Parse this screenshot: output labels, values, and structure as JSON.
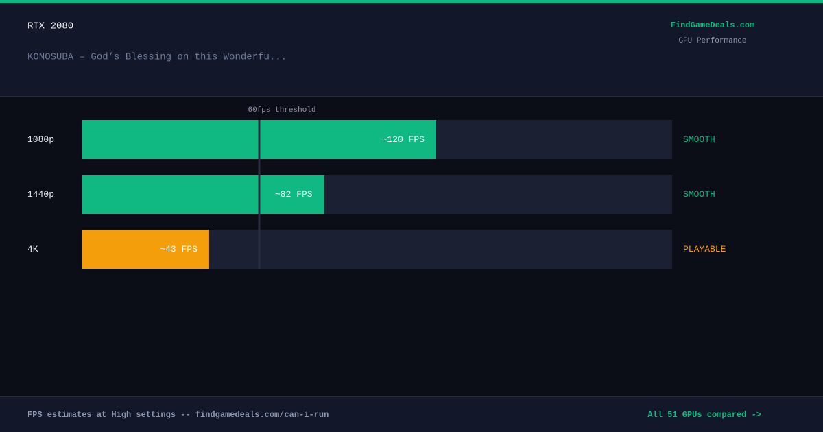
{
  "header": {
    "title": "RTX 2080",
    "subtitle": "KONOSUBA – God’s Blessing on this Wonderfu...",
    "brand": "FindGameDeals.com",
    "brand_sub": "GPU Performance"
  },
  "chart_data": {
    "type": "bar",
    "orientation": "horizontal",
    "categories": [
      "1080p",
      "1440p",
      "4K"
    ],
    "values": [
      120,
      82,
      43
    ],
    "value_labels": [
      "~120 FPS",
      "~82 FPS",
      "~43 FPS"
    ],
    "colors": [
      "#10b981",
      "#10b981",
      "#f59e0b"
    ],
    "statuses": [
      "SMOOTH",
      "SMOOTH",
      "PLAYABLE"
    ],
    "xlim": [
      0,
      200
    ],
    "threshold": {
      "value": 60,
      "label": "60fps threshold"
    }
  },
  "footer": {
    "note": "FPS estimates at High settings -- findgamedeals.com/can-i-run",
    "link": "All 51 GPUs compared ->"
  }
}
